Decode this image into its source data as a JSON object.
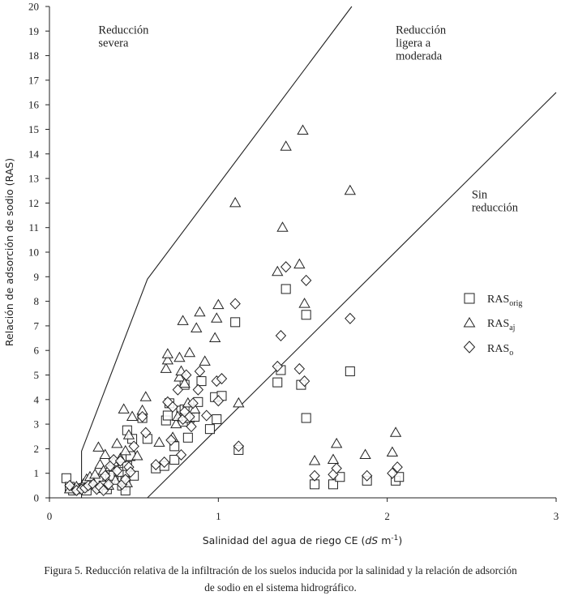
{
  "chart_data": {
    "type": "scatter",
    "xlabel_main": "Salinidad del agua de riego CE (",
    "xlabel_unit_italic": "dS",
    "xlabel_unit_rest": " m",
    "xlabel_exp": "-1",
    "xlabel_close": ")",
    "ylabel": "Relación de adsorción de sodio (RAS)",
    "xlim": [
      0,
      3
    ],
    "ylim": [
      0,
      20
    ],
    "xticks": [
      0,
      1,
      2,
      3
    ],
    "yticks": [
      0,
      1,
      2,
      3,
      4,
      5,
      6,
      7,
      8,
      9,
      10,
      11,
      12,
      13,
      14,
      15,
      16,
      17,
      18,
      19,
      20
    ],
    "boundaries": [
      {
        "name": "limite-severa",
        "points": [
          [
            0.19,
            0
          ],
          [
            0.19,
            1.9
          ],
          [
            0.58,
            8.9
          ],
          [
            1.79,
            20
          ]
        ]
      },
      {
        "name": "limite-sin-reduccion",
        "points": [
          [
            0.58,
            0
          ],
          [
            3.0,
            16.5
          ]
        ]
      }
    ],
    "regions": [
      {
        "name": "severa",
        "lines": [
          "Reducción",
          "severa"
        ],
        "x": 0.29,
        "y": 18.9
      },
      {
        "name": "ligera",
        "lines": [
          "Reducción",
          "ligera a",
          "moderada"
        ],
        "x": 2.05,
        "y": 18.9
      },
      {
        "name": "sin",
        "lines": [
          "Sin",
          "reducción"
        ],
        "x": 2.5,
        "y": 12.2
      }
    ],
    "series": [
      {
        "name": "RAS",
        "sub": "orig",
        "marker": "square",
        "points": [
          [
            0.1,
            0.8
          ],
          [
            0.12,
            0.45
          ],
          [
            0.14,
            0.3
          ],
          [
            0.17,
            0.35
          ],
          [
            0.2,
            0.4
          ],
          [
            0.22,
            0.3
          ],
          [
            0.24,
            0.55
          ],
          [
            0.27,
            0.6
          ],
          [
            0.29,
            0.7
          ],
          [
            0.3,
            0.4
          ],
          [
            0.32,
            0.5
          ],
          [
            0.34,
            0.35
          ],
          [
            0.36,
            0.8
          ],
          [
            0.38,
            0.9
          ],
          [
            0.41,
            1.05
          ],
          [
            0.43,
            0.5
          ],
          [
            0.45,
            0.3
          ],
          [
            0.45,
            0.7
          ],
          [
            0.46,
            1.3
          ],
          [
            0.46,
            2.75
          ],
          [
            0.48,
            1.7
          ],
          [
            0.49,
            2.4
          ],
          [
            0.5,
            0.9
          ],
          [
            0.55,
            3.25
          ],
          [
            0.58,
            2.4
          ],
          [
            0.63,
            1.2
          ],
          [
            0.68,
            1.3
          ],
          [
            0.69,
            3.15
          ],
          [
            0.7,
            3.35
          ],
          [
            0.71,
            3.85
          ],
          [
            0.74,
            1.55
          ],
          [
            0.74,
            2.1
          ],
          [
            0.78,
            3.35
          ],
          [
            0.78,
            3.55
          ],
          [
            0.79,
            3.1
          ],
          [
            0.8,
            3.6
          ],
          [
            0.8,
            4.6
          ],
          [
            0.82,
            2.45
          ],
          [
            0.83,
            3.25
          ],
          [
            0.86,
            3.3
          ],
          [
            0.88,
            3.9
          ],
          [
            0.9,
            4.75
          ],
          [
            0.95,
            2.8
          ],
          [
            0.98,
            4.1
          ],
          [
            0.99,
            3.2
          ],
          [
            1.02,
            4.15
          ],
          [
            1.1,
            7.15
          ],
          [
            1.12,
            1.95
          ],
          [
            1.35,
            4.7
          ],
          [
            1.37,
            5.2
          ],
          [
            1.4,
            8.5
          ],
          [
            1.49,
            4.6
          ],
          [
            1.52,
            3.25
          ],
          [
            1.52,
            7.45
          ],
          [
            1.57,
            0.55
          ],
          [
            1.68,
            0.55
          ],
          [
            1.72,
            0.85
          ],
          [
            1.78,
            5.15
          ],
          [
            1.88,
            0.7
          ],
          [
            2.05,
            0.7
          ],
          [
            2.07,
            0.85
          ]
        ]
      },
      {
        "name": "RAS",
        "sub": "aj",
        "marker": "triangle",
        "points": [
          [
            0.12,
            0.35
          ],
          [
            0.16,
            0.45
          ],
          [
            0.2,
            0.55
          ],
          [
            0.22,
            0.75
          ],
          [
            0.24,
            0.85
          ],
          [
            0.27,
            0.95
          ],
          [
            0.29,
            2.05
          ],
          [
            0.3,
            1.35
          ],
          [
            0.32,
            1.1
          ],
          [
            0.33,
            1.75
          ],
          [
            0.35,
            0.5
          ],
          [
            0.36,
            1.25
          ],
          [
            0.38,
            1.45
          ],
          [
            0.39,
            0.7
          ],
          [
            0.4,
            2.2
          ],
          [
            0.42,
            1.6
          ],
          [
            0.44,
            3.6
          ],
          [
            0.45,
            1.9
          ],
          [
            0.46,
            0.6
          ],
          [
            0.47,
            2.55
          ],
          [
            0.49,
            3.3
          ],
          [
            0.52,
            1.7
          ],
          [
            0.55,
            3.55
          ],
          [
            0.57,
            4.1
          ],
          [
            0.65,
            2.25
          ],
          [
            0.69,
            5.25
          ],
          [
            0.7,
            5.6
          ],
          [
            0.7,
            5.85
          ],
          [
            0.73,
            2.45
          ],
          [
            0.75,
            3.0
          ],
          [
            0.76,
            3.3
          ],
          [
            0.77,
            5.7
          ],
          [
            0.77,
            4.9
          ],
          [
            0.78,
            5.15
          ],
          [
            0.79,
            7.2
          ],
          [
            0.8,
            4.65
          ],
          [
            0.82,
            3.85
          ],
          [
            0.83,
            5.9
          ],
          [
            0.86,
            3.6
          ],
          [
            0.87,
            6.9
          ],
          [
            0.89,
            7.55
          ],
          [
            0.92,
            5.55
          ],
          [
            0.98,
            6.5
          ],
          [
            0.99,
            7.3
          ],
          [
            1.0,
            7.85
          ],
          [
            1.1,
            12.0
          ],
          [
            1.12,
            3.85
          ],
          [
            1.35,
            9.2
          ],
          [
            1.38,
            11.0
          ],
          [
            1.4,
            14.3
          ],
          [
            1.48,
            9.5
          ],
          [
            1.5,
            14.95
          ],
          [
            1.51,
            7.9
          ],
          [
            1.57,
            1.5
          ],
          [
            1.68,
            1.55
          ],
          [
            1.7,
            2.2
          ],
          [
            1.78,
            12.5
          ],
          [
            1.87,
            1.75
          ],
          [
            2.03,
            1.85
          ],
          [
            2.05,
            2.65
          ]
        ]
      },
      {
        "name": "RAS",
        "sub": "o",
        "marker": "diamond",
        "points": [
          [
            0.12,
            0.5
          ],
          [
            0.16,
            0.3
          ],
          [
            0.19,
            0.35
          ],
          [
            0.21,
            0.4
          ],
          [
            0.23,
            0.5
          ],
          [
            0.26,
            0.55
          ],
          [
            0.28,
            0.35
          ],
          [
            0.3,
            0.45
          ],
          [
            0.32,
            0.3
          ],
          [
            0.33,
            0.9
          ],
          [
            0.35,
            0.55
          ],
          [
            0.36,
            1.3
          ],
          [
            0.38,
            1.55
          ],
          [
            0.4,
            1.1
          ],
          [
            0.42,
            1.5
          ],
          [
            0.43,
            0.55
          ],
          [
            0.45,
            0.75
          ],
          [
            0.47,
            1.25
          ],
          [
            0.48,
            1.05
          ],
          [
            0.5,
            2.1
          ],
          [
            0.55,
            3.3
          ],
          [
            0.57,
            2.65
          ],
          [
            0.63,
            1.35
          ],
          [
            0.68,
            1.45
          ],
          [
            0.7,
            3.9
          ],
          [
            0.72,
            2.35
          ],
          [
            0.73,
            3.7
          ],
          [
            0.76,
            4.4
          ],
          [
            0.78,
            1.75
          ],
          [
            0.79,
            3.2
          ],
          [
            0.8,
            3.5
          ],
          [
            0.81,
            5.0
          ],
          [
            0.83,
            3.3
          ],
          [
            0.84,
            2.9
          ],
          [
            0.85,
            3.85
          ],
          [
            0.88,
            4.4
          ],
          [
            0.89,
            5.15
          ],
          [
            0.93,
            3.35
          ],
          [
            0.99,
            4.75
          ],
          [
            1.0,
            3.95
          ],
          [
            1.02,
            4.85
          ],
          [
            1.1,
            7.9
          ],
          [
            1.12,
            2.1
          ],
          [
            1.35,
            5.35
          ],
          [
            1.37,
            6.6
          ],
          [
            1.4,
            9.4
          ],
          [
            1.48,
            5.25
          ],
          [
            1.51,
            4.75
          ],
          [
            1.52,
            8.85
          ],
          [
            1.57,
            0.9
          ],
          [
            1.68,
            0.95
          ],
          [
            1.7,
            1.2
          ],
          [
            1.78,
            7.3
          ],
          [
            1.88,
            0.9
          ],
          [
            2.03,
            1.0
          ],
          [
            2.06,
            1.25
          ]
        ]
      }
    ]
  },
  "caption": {
    "line1": "Figura 5. Reducción relativa de la infiltración de los suelos inducida por la salinidad y la relación de adsorción",
    "line2": "de sodio en el sistema hidrográfico."
  }
}
